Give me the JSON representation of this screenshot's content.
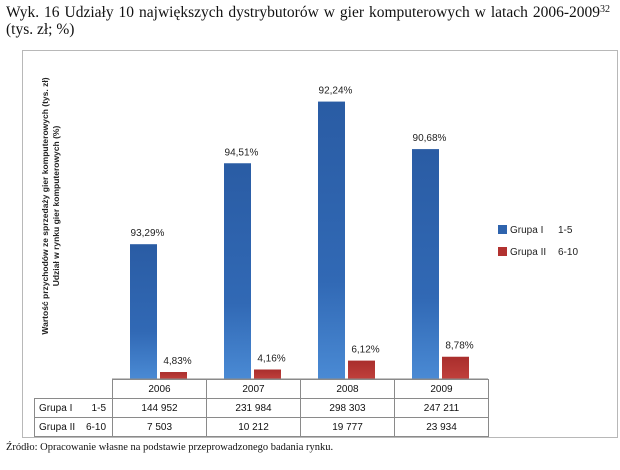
{
  "caption": {
    "text": "Wyk. 16 Udziały 10 największych dystrybutorów w gier komputerowych w latach 2006-2009",
    "superscript": "32",
    "suffix": " (tys. zł; %)"
  },
  "source": "Źródło: Opracowanie własne na podstawie przeprowadzonego badania rynku.",
  "chart_data": {
    "type": "bar",
    "ylabel_line1": "Wartość przychodów ze sprzedaży gier komputerowych (tys. zł)",
    "ylabel_line2": "Udział w rynku gier komputerowych (%)",
    "categories": [
      "2006",
      "2007",
      "2008",
      "2009"
    ],
    "series": [
      {
        "name": "Grupa I",
        "range": "1-5",
        "color": "#2e63ad",
        "values": [
          144952,
          231984,
          298303,
          247211
        ],
        "value_labels": [
          "144 952",
          "231 984",
          "298 303",
          "247 211"
        ],
        "share_labels": [
          "93,29%",
          "94,51%",
          "92,24%",
          "90,68%"
        ]
      },
      {
        "name": "Grupa II",
        "range": "6-10",
        "color": "#b23230",
        "values": [
          7503,
          10212,
          19777,
          23934
        ],
        "value_labels": [
          "7 503",
          "10 212",
          "19 777",
          "23 934"
        ],
        "share_labels": [
          "4,83%",
          "4,16%",
          "6,12%",
          "8,78%"
        ]
      }
    ],
    "ylim": [
      0,
      300000
    ],
    "grid": false,
    "legend_position": "right",
    "data_table": true
  }
}
